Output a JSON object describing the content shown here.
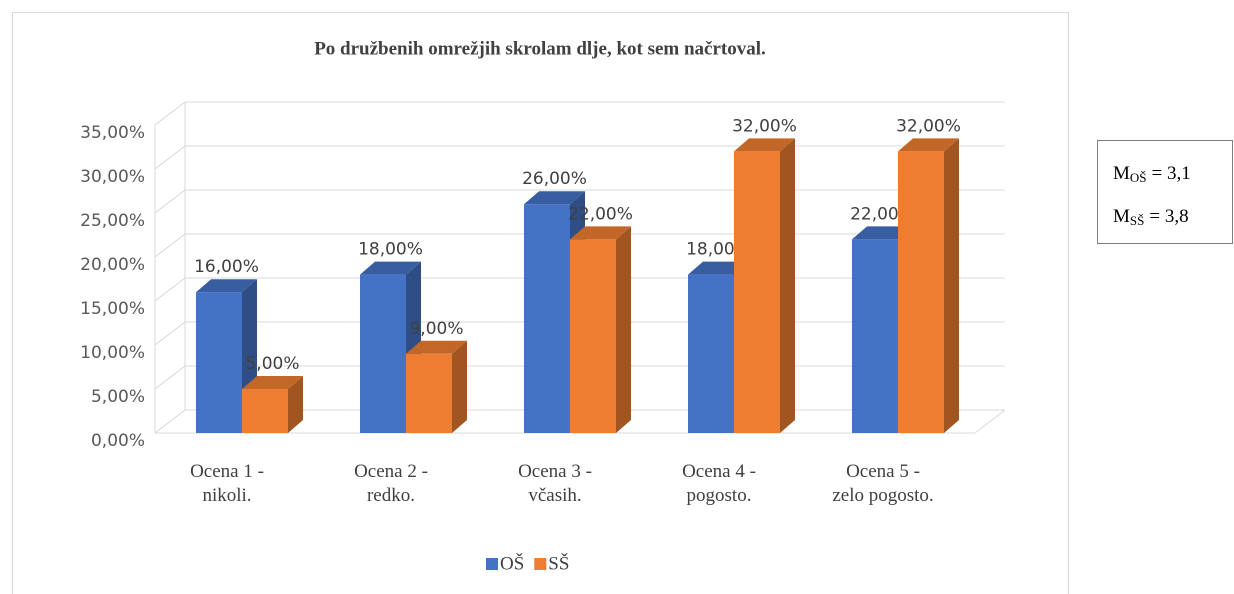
{
  "chart_data": {
    "type": "bar3d",
    "title": "Po družbenih omrežjih skrolam dlje, kot sem načrtoval.",
    "categories": [
      [
        "Ocena 1 -",
        "nikoli."
      ],
      [
        "Ocena 2 -",
        "redko."
      ],
      [
        "Ocena 3 -",
        "včasih."
      ],
      [
        "Ocena 4 -",
        "pogosto."
      ],
      [
        "Ocena 5 -",
        "zelo pogosto."
      ]
    ],
    "series": [
      {
        "name": "OŠ",
        "color": "#4472c4",
        "values": [
          16,
          18,
          26,
          18,
          22
        ],
        "value_labels": [
          "16,00%",
          "18,00%",
          "26,00%",
          "18,00%",
          "22,00%"
        ]
      },
      {
        "name": "SŠ",
        "color": "#ed7d31",
        "values": [
          5,
          9,
          22,
          32,
          32
        ],
        "value_labels": [
          "5,00%",
          "9,00%",
          "22,00%",
          "32,00%",
          "32,00%"
        ]
      }
    ],
    "ylim": [
      0,
      35
    ],
    "yticks": [
      {
        "value": 0,
        "label": "0,00%"
      },
      {
        "value": 5,
        "label": "5,00%"
      },
      {
        "value": 10,
        "label": "10,00%"
      },
      {
        "value": 15,
        "label": "15,00%"
      },
      {
        "value": 20,
        "label": "20,00%"
      },
      {
        "value": 25,
        "label": "25,00%"
      },
      {
        "value": 30,
        "label": "30,00%"
      },
      {
        "value": 35,
        "label": "35,00%"
      }
    ],
    "grid": true,
    "legend": "bottom",
    "annotations": [
      {
        "symbol": "M",
        "subscript": "OŠ",
        "text": "= 3,1"
      },
      {
        "symbol": "M",
        "subscript": "SŠ",
        "text": "= 3,8"
      }
    ]
  }
}
